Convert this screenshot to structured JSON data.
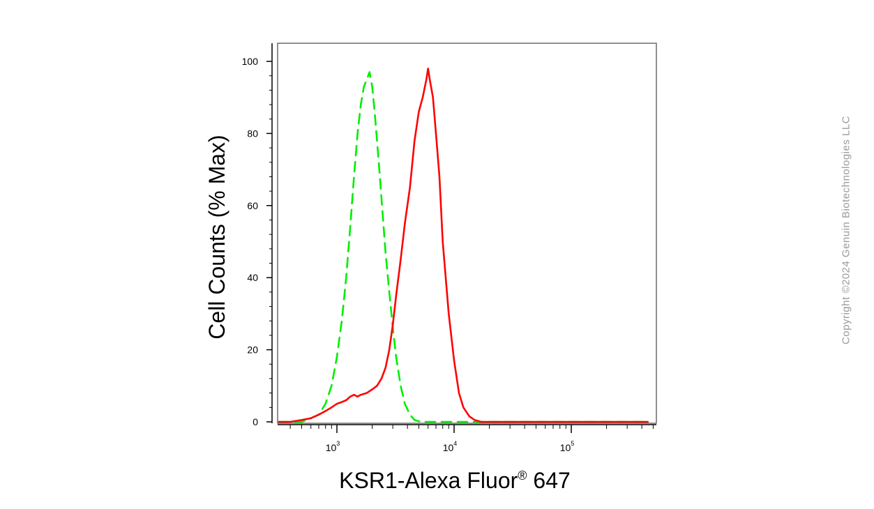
{
  "chart_data": {
    "type": "line",
    "xlabel": "KSR1-Alexa Fluor",
    "xlabel_reg": "®",
    "xlabel_tail": " 647",
    "ylabel": "Cell Counts (% Max)",
    "x_scale": "log",
    "xlim": [
      300,
      450000
    ],
    "ylim": [
      0,
      100
    ],
    "y_ticks": [
      0,
      20,
      40,
      60,
      80,
      100
    ],
    "x_ticks": [
      {
        "base": "10",
        "exp": "3",
        "value": 1000
      },
      {
        "base": "10",
        "exp": "4",
        "value": 10000
      },
      {
        "base": "10",
        "exp": "5",
        "value": 100000
      }
    ],
    "series": [
      {
        "color": "#00ee00",
        "style": "dashed",
        "x": [
          320,
          400,
          500,
          600,
          700,
          800,
          900,
          1000,
          1100,
          1200,
          1300,
          1400,
          1500,
          1600,
          1700,
          1800,
          1900,
          2000,
          2100,
          2200,
          2300,
          2400,
          2600,
          2800,
          3000,
          3200,
          3500,
          3800,
          4200,
          4600,
          5200,
          7000,
          20000,
          450000
        ],
        "y": [
          0,
          0,
          0,
          1,
          2,
          5,
          10,
          18,
          28,
          40,
          54,
          68,
          80,
          88,
          93,
          95,
          97,
          93,
          86,
          78,
          70,
          62,
          47,
          36,
          26,
          18,
          10,
          5,
          2,
          0.5,
          0,
          0,
          0,
          0
        ]
      },
      {
        "color": "#ff0000",
        "style": "solid",
        "x": [
          320,
          400,
          500,
          600,
          700,
          800,
          900,
          1000,
          1100,
          1200,
          1300,
          1400,
          1500,
          1600,
          1800,
          2000,
          2200,
          2400,
          2600,
          2800,
          3000,
          3200,
          3500,
          3800,
          4200,
          4600,
          5000,
          5400,
          5800,
          6000,
          6200,
          6600,
          7000,
          7500,
          8000,
          9000,
          10000,
          11000,
          12000,
          13500,
          15000,
          17000,
          20000,
          30000,
          100000,
          450000
        ],
        "y": [
          0,
          0,
          0.5,
          1,
          2,
          3,
          4,
          5,
          5.5,
          6,
          7,
          7.5,
          7,
          7.5,
          8,
          9,
          10,
          12,
          15,
          20,
          27,
          35,
          45,
          55,
          65,
          78,
          86,
          90,
          95,
          98,
          95,
          90,
          80,
          68,
          50,
          30,
          17,
          8,
          4,
          1.5,
          0.5,
          0,
          0,
          0,
          0,
          0
        ]
      }
    ]
  },
  "watermark": "Copyright ©2024 Genuin Biotechnologies LLC"
}
